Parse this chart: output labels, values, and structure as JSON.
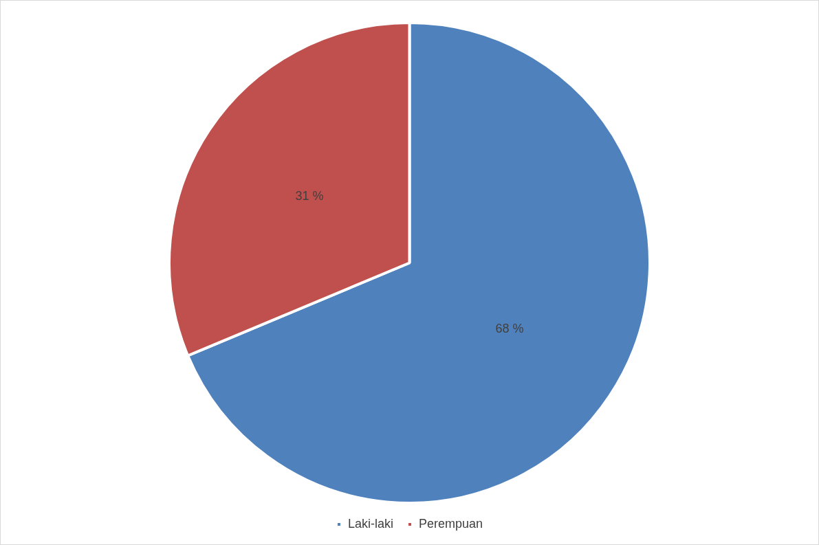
{
  "chart_data": {
    "type": "pie",
    "categories": [
      "Laki-laki",
      "Perempuan"
    ],
    "values": [
      68,
      31
    ],
    "colors": [
      "#4f81bd",
      "#c0504d"
    ],
    "value_labels": [
      "68 %",
      "31 %"
    ],
    "legend": "bottom"
  }
}
